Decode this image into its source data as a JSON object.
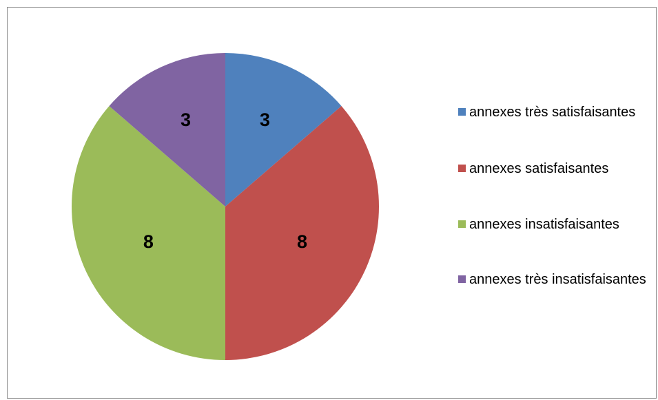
{
  "chart_data": {
    "type": "pie",
    "title": "",
    "categories": [
      "annexes très satisfaisantes",
      "annexes satisfaisantes",
      "annexes insatisfaisantes",
      "annexes très insatisfaisantes"
    ],
    "values": [
      3,
      8,
      8,
      3
    ],
    "data_labels": [
      "3",
      "8",
      "8",
      "3"
    ],
    "colors": [
      "#4f81bd",
      "#c0504d",
      "#9bbb59",
      "#8064a2"
    ],
    "start_angle": "12 o'clock",
    "direction": "clockwise",
    "legend": "right"
  }
}
